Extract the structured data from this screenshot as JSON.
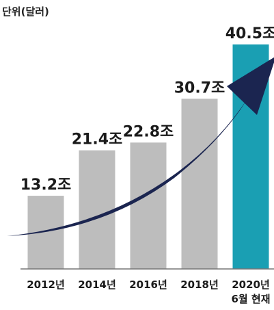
{
  "chart_data": {
    "type": "bar",
    "unit_label": "단위(달러)",
    "categories": [
      [
        "2012년"
      ],
      [
        "2014년"
      ],
      [
        "2016년"
      ],
      [
        "2018년"
      ],
      [
        "2020년",
        "6월 현재"
      ]
    ],
    "values": [
      13.2,
      21.4,
      22.8,
      30.7,
      40.5
    ],
    "data_labels": [
      "13.2조",
      "21.4조",
      "22.8조",
      "30.7조",
      "40.5조"
    ],
    "ylim": [
      0,
      45
    ],
    "grid": false,
    "legend": "none",
    "colors": {
      "bar": "#bdbdbd",
      "highlight_bar": "#1a9fb3",
      "arrow": "#1b2550",
      "baseline": "#777777"
    },
    "highlight_index": 4,
    "trend_arrow": true
  }
}
